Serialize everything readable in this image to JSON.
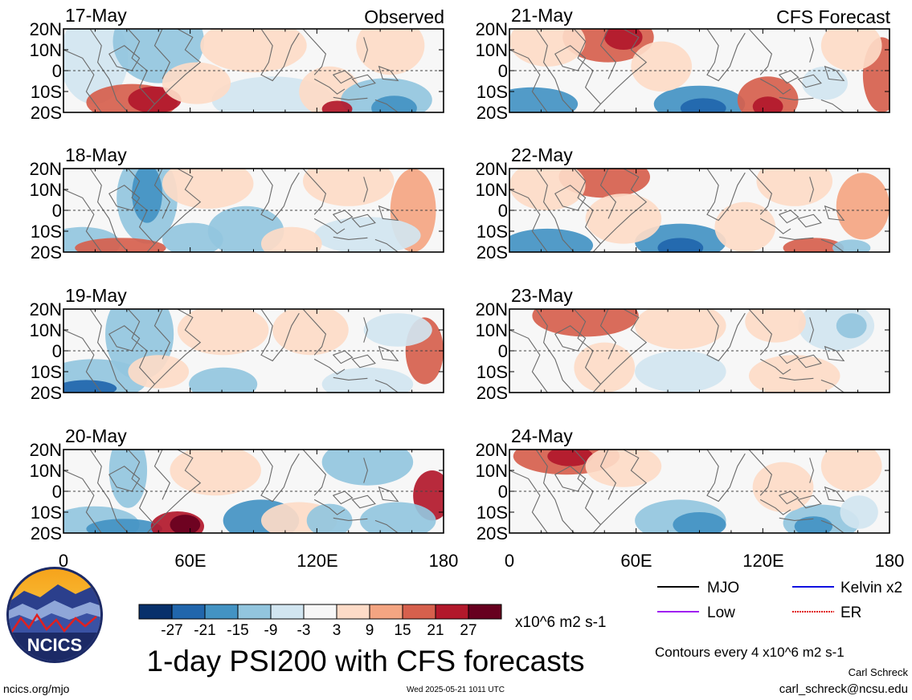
{
  "left_column_label": "Observed",
  "right_column_label": "CFS Forecast",
  "left_panels": [
    {
      "date": "17-May"
    },
    {
      "date": "18-May"
    },
    {
      "date": "19-May"
    },
    {
      "date": "20-May"
    }
  ],
  "right_panels": [
    {
      "date": "21-May"
    },
    {
      "date": "22-May"
    },
    {
      "date": "23-May"
    },
    {
      "date": "24-May"
    }
  ],
  "y_ticks": [
    "20N",
    "10N",
    "0",
    "10S",
    "20S"
  ],
  "x_ticks": [
    "0",
    "60E",
    "120E",
    "180"
  ],
  "colorbar": {
    "tick_labels": [
      "-27",
      "-21",
      "-15",
      "-9",
      "-3",
      "3",
      "9",
      "15",
      "21",
      "27"
    ],
    "colors": [
      "#08306b",
      "#2166ac",
      "#4393c3",
      "#92c5de",
      "#d1e5f0",
      "#f7f7f7",
      "#fddbc7",
      "#f4a582",
      "#d6604d",
      "#b2182b",
      "#67001f"
    ],
    "units": "x10^6 m2 s-1"
  },
  "legend": [
    {
      "label": "MJO",
      "color": "#000000"
    },
    {
      "label": "Kelvin x2",
      "color": "#1010e0"
    },
    {
      "label": "Low",
      "color": "#a020f0"
    },
    {
      "label": "ER",
      "color": "#e01010"
    }
  ],
  "title": "1-day PSI200 with CFS forecasts",
  "contour_note": "Contours every 4 x10^6 m2 s-1",
  "author": "Carl Schreck",
  "email": "carl_schreck@ncsu.edu",
  "site": "ncics.org/mjo",
  "timestamp": "Wed 2025-05-21 1011 UTC",
  "logo_text": "NCICS"
}
